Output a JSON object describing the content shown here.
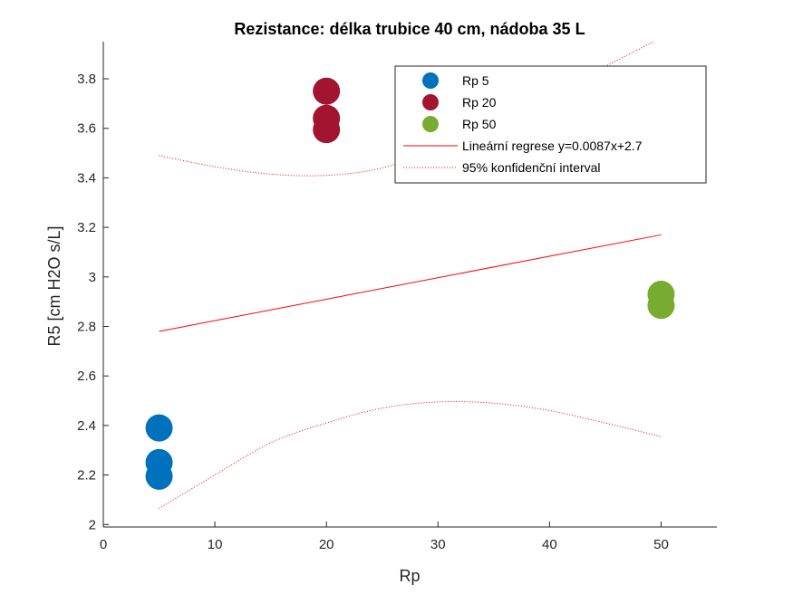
{
  "chart_data": {
    "type": "scatter",
    "title": "Rezistance: délka trubice 40 cm, nádoba 35 L",
    "xlabel": "Rp",
    "ylabel": "R5 [cm H2O s/L]",
    "xlim": [
      0,
      55
    ],
    "ylim": [
      1.99,
      3.95
    ],
    "xticks": [
      0,
      10,
      20,
      30,
      40,
      50
    ],
    "yticks": [
      2,
      2.2,
      2.4,
      2.6,
      2.8,
      3,
      3.2,
      3.4,
      3.6,
      3.8
    ],
    "grid": false,
    "legend_position": "top-right",
    "series": [
      {
        "name": "Rp 5",
        "color": "#0072BD",
        "x": [
          5,
          5,
          5
        ],
        "y": [
          2.39,
          2.25,
          2.195
        ]
      },
      {
        "name": "Rp 20",
        "color": "#A2142F",
        "x": [
          20,
          20,
          20
        ],
        "y": [
          3.75,
          3.64,
          3.595
        ]
      },
      {
        "name": "Rp 50",
        "color": "#77AC30",
        "x": [
          50,
          50
        ],
        "y": [
          2.93,
          2.885
        ]
      }
    ],
    "regression": {
      "name": "Lineární regrese y=0.0087x+2.7",
      "color": "#FF0000",
      "x": [
        5,
        50
      ],
      "y": [
        2.78,
        3.17
      ]
    },
    "confidence_interval": {
      "name": "95% konfidenční interval",
      "color": "#FF0000",
      "x": [
        5,
        10,
        15,
        20,
        25,
        30,
        35,
        40,
        45,
        50
      ],
      "upper": [
        3.49,
        3.445,
        3.415,
        3.41,
        3.44,
        3.52,
        3.62,
        3.73,
        3.85,
        3.965
      ],
      "lower": [
        2.065,
        2.2,
        2.33,
        2.41,
        2.47,
        2.495,
        2.49,
        2.46,
        2.41,
        2.355
      ]
    }
  }
}
